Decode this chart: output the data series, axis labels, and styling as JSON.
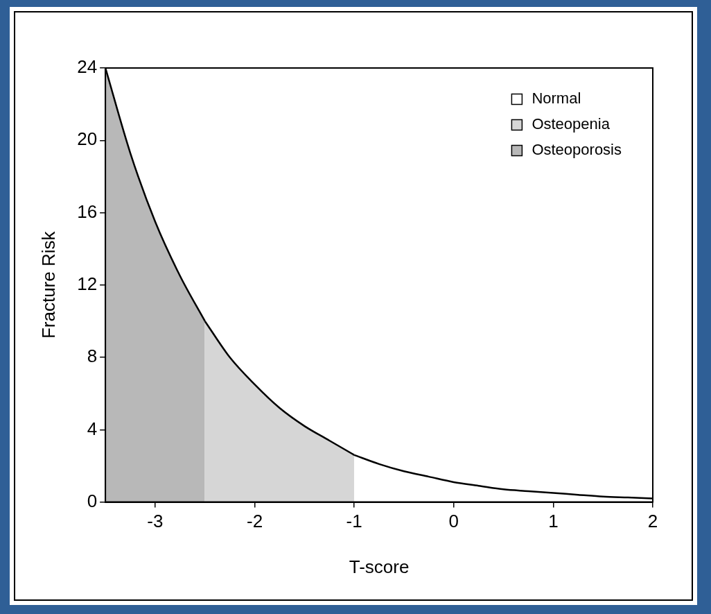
{
  "chart_data": {
    "type": "area",
    "xlabel": "T-score",
    "ylabel": "Fracture Risk",
    "xlim": [
      -3.5,
      2
    ],
    "ylim": [
      0,
      24
    ],
    "xticks": [
      -3,
      -2,
      -1,
      0,
      1,
      2
    ],
    "yticks": [
      0,
      4,
      8,
      12,
      16,
      20,
      24
    ],
    "legend": "top right",
    "series": [
      {
        "name": "Normal",
        "color": "#ffffff",
        "x": [
          -1,
          -0.75,
          -0.5,
          -0.25,
          0,
          0.25,
          0.5,
          0.75,
          1,
          1.25,
          1.5,
          1.75,
          2
        ],
        "values": [
          2.6,
          2.1,
          1.7,
          1.4,
          1.1,
          0.9,
          0.7,
          0.6,
          0.5,
          0.4,
          0.3,
          0.25,
          0.2
        ]
      },
      {
        "name": "Osteopenia",
        "color": "#d6d6d6",
        "x": [
          -2.5,
          -2.25,
          -2,
          -1.75,
          -1.5,
          -1.25,
          -1
        ],
        "values": [
          10,
          8,
          6.5,
          5.2,
          4.2,
          3.4,
          2.6
        ]
      },
      {
        "name": "Osteoporosis",
        "color": "#b8b8b8",
        "x": [
          -3.5,
          -3.25,
          -3,
          -2.75,
          -2.5
        ],
        "values": [
          24,
          19.3,
          15.5,
          12.5,
          10
        ]
      }
    ]
  }
}
